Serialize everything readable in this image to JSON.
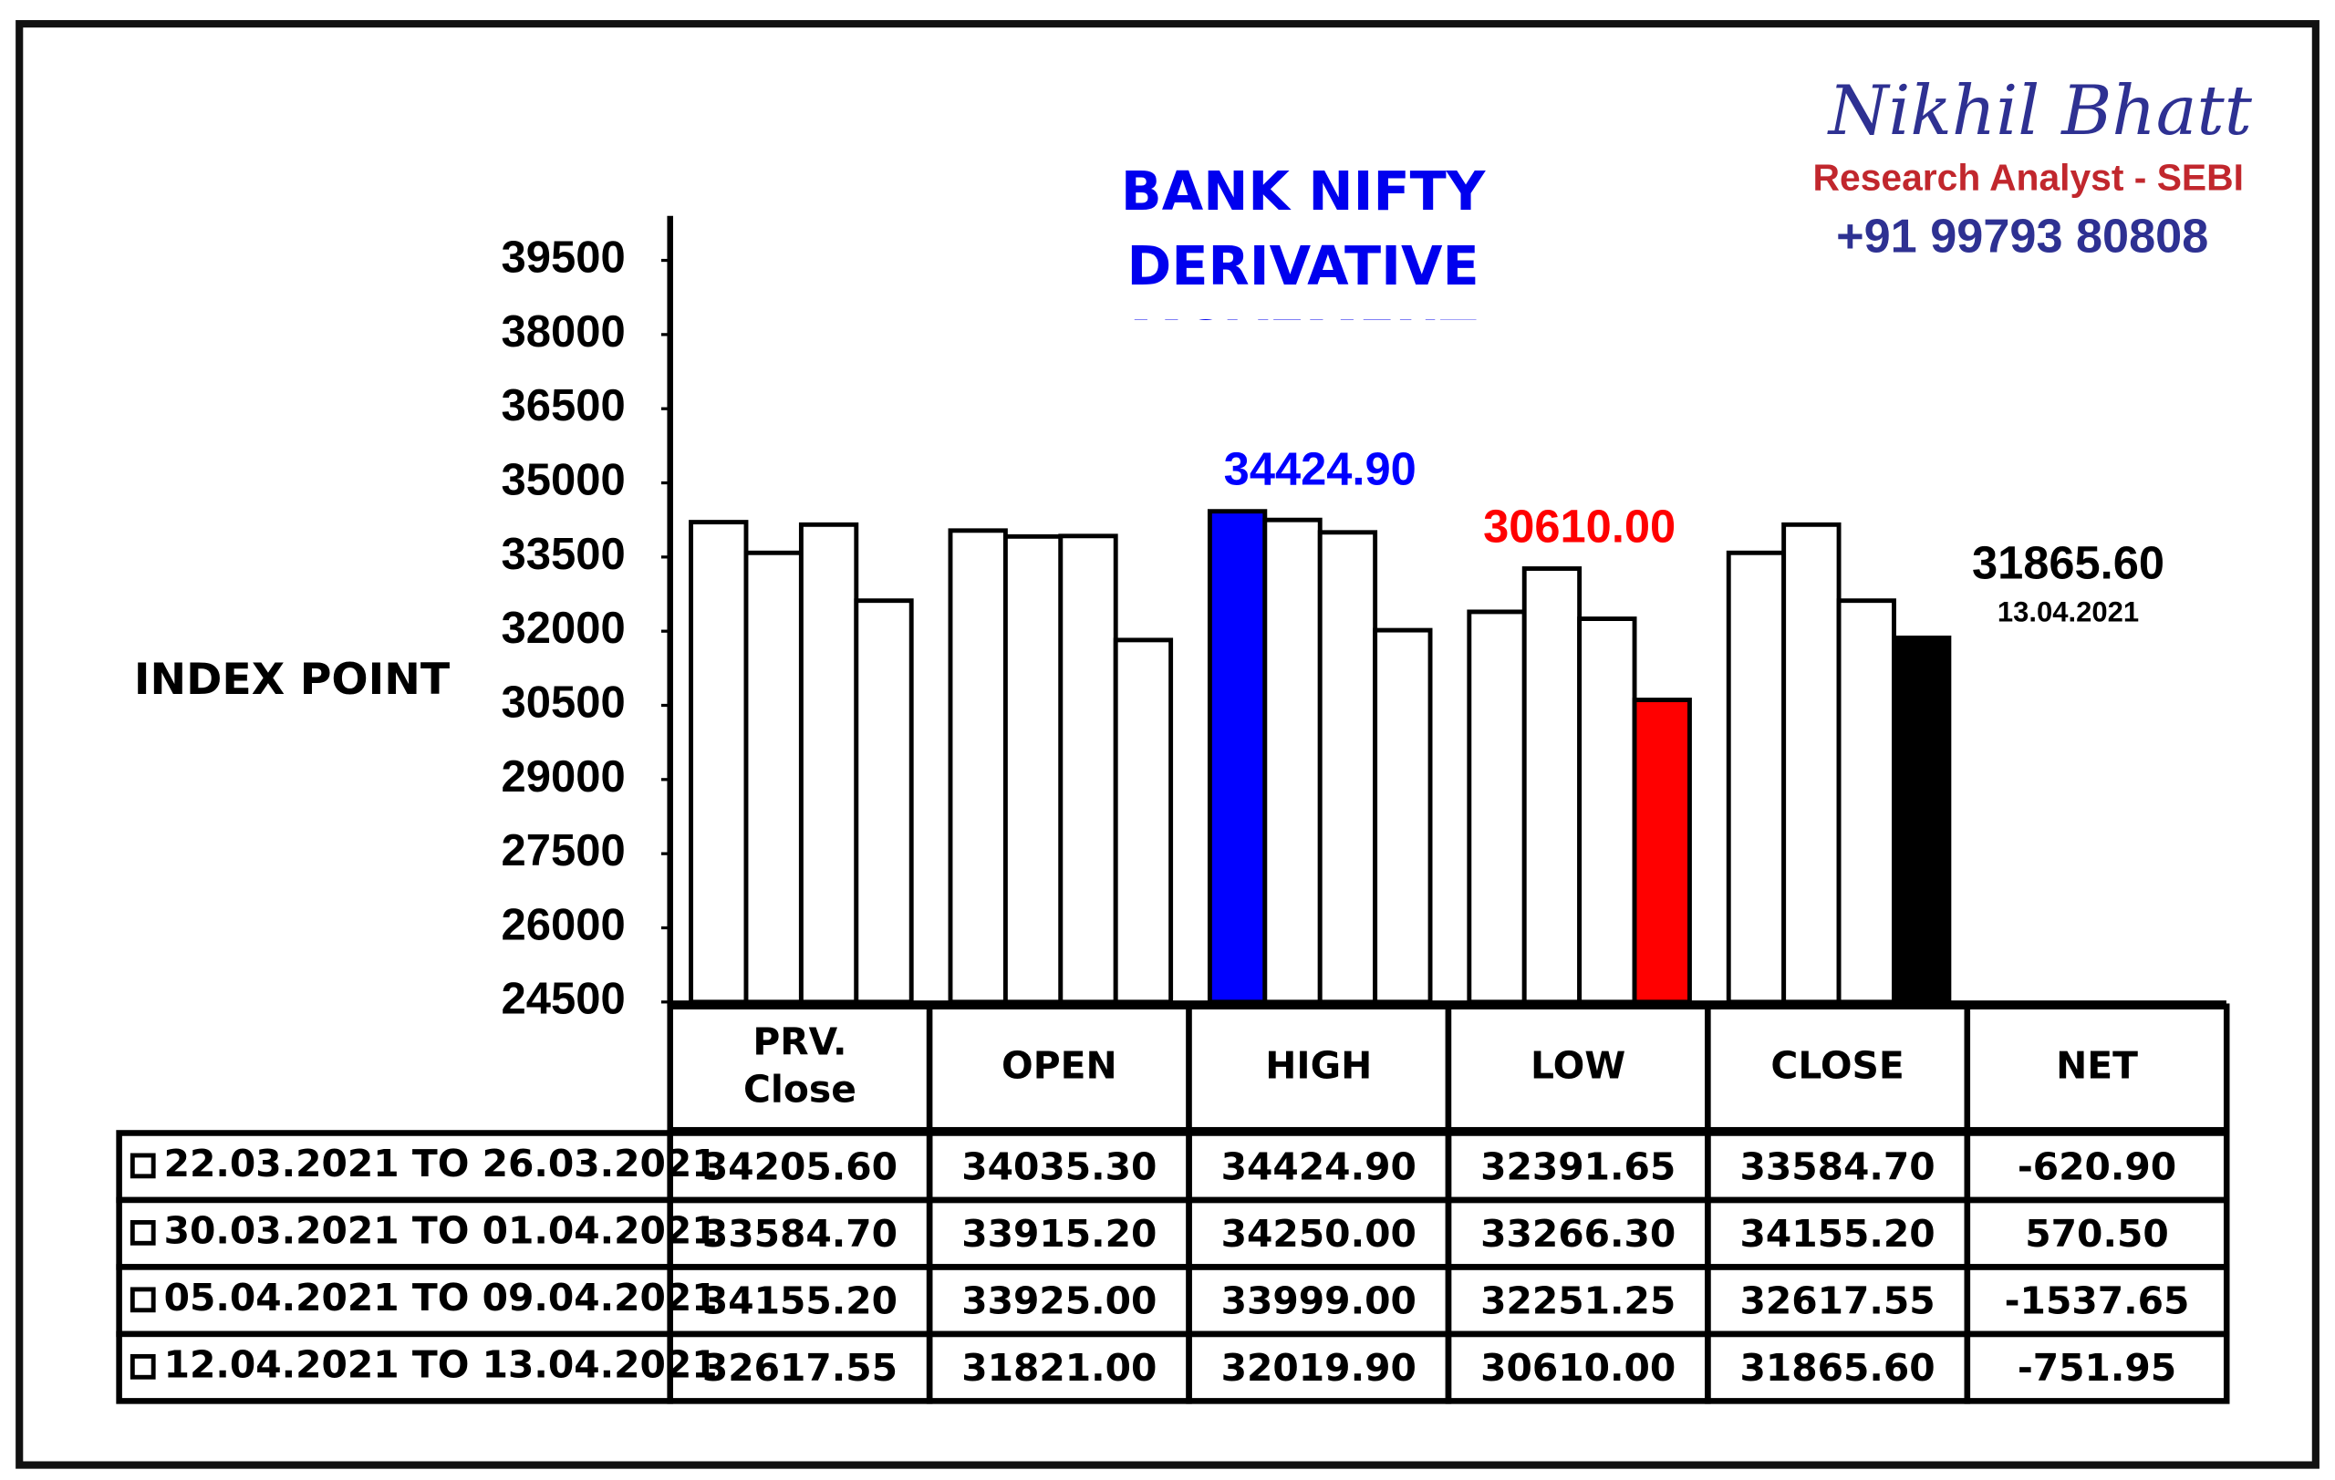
{
  "header": {
    "name": "Nikhil Bhatt",
    "role": "Research Analyst - SEBI",
    "phone": "+91 99793 80808"
  },
  "chart_data": {
    "type": "bar",
    "title": "BANK NIFTY DERIVATIVE MOVEMENT",
    "y_label": "INDEX POINT",
    "categories": [
      "PRV. Close",
      "OPEN",
      "HIGH",
      "LOW",
      "CLOSE"
    ],
    "ylim": [
      24500,
      40400
    ],
    "yticks": [
      24500,
      26000,
      27500,
      29000,
      30500,
      32000,
      33500,
      35000,
      36500,
      38000,
      39500
    ],
    "series": [
      {
        "name": "22.03.2021 TO 26.03.2021",
        "values": [
          34205.6,
          34035.3,
          34424.9,
          32391.65,
          33584.7
        ],
        "colors": [
          "#ffffff",
          "#ffffff",
          "#0000ff",
          "#ffffff",
          "#ffffff"
        ],
        "value_labels": [
          null,
          null,
          "34424.90",
          null,
          null
        ],
        "label_colors": [
          null,
          null,
          "#0000ff",
          null,
          null
        ]
      },
      {
        "name": "30.03.2021 TO 01.04.2021",
        "values": [
          33584.7,
          33915.2,
          34250.0,
          33266.3,
          34155.2
        ],
        "colors": [
          "#ffffff",
          "#ffffff",
          "#ffffff",
          "#ffffff",
          "#ffffff"
        ]
      },
      {
        "name": "05.04.2021 TO 09.04.2021",
        "values": [
          34155.2,
          33925.0,
          33999.0,
          32251.25,
          32617.55
        ],
        "colors": [
          "#ffffff",
          "#ffffff",
          "#ffffff",
          "#ffffff",
          "#ffffff"
        ]
      },
      {
        "name": "12.04.2021 TO 13.04.2021",
        "values": [
          32617.55,
          31821.0,
          32019.9,
          30610.0,
          31865.6
        ],
        "colors": [
          "#ffffff",
          "#ffffff",
          "#ffffff",
          "#ff0000",
          "#000000"
        ],
        "value_labels": [
          null,
          null,
          null,
          "30610.00",
          "31865.60"
        ],
        "label_colors": [
          null,
          null,
          null,
          "#ff0000",
          "#000000"
        ],
        "label_note": "13.04.2021"
      }
    ]
  },
  "table": {
    "header": [
      "PRV.\nClose",
      "OPEN",
      "HIGH",
      "LOW",
      "CLOSE",
      "NET"
    ],
    "rows": [
      [
        "22.03.2021 TO 26.03.2021",
        "34205.60",
        "34035.30",
        "34424.90",
        "32391.65",
        "33584.70",
        "-620.90"
      ],
      [
        "30.03.2021 TO 01.04.2021",
        "33584.70",
        "33915.20",
        "34250.00",
        "33266.30",
        "34155.20",
        "570.50"
      ],
      [
        "05.04.2021 TO 09.04.2021",
        "34155.20",
        "33925.00",
        "33999.00",
        "32251.25",
        "32617.55",
        "-1537.65"
      ],
      [
        "12.04.2021 TO 13.04.2021",
        "32617.55",
        "31821.00",
        "32019.90",
        "30610.00",
        "31865.60",
        "-751.95"
      ]
    ]
  }
}
